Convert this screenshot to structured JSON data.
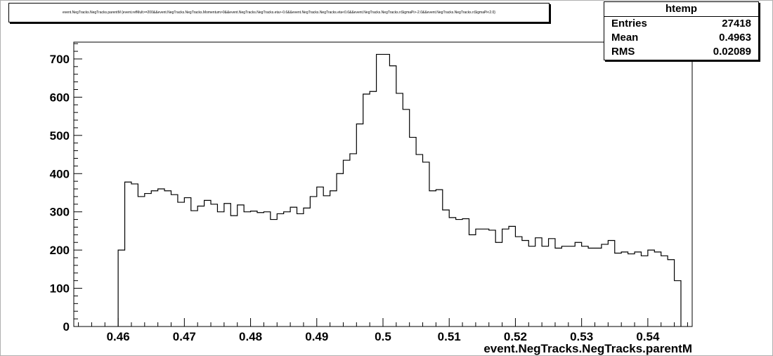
{
  "title": "event.NegTracks.NegTracks.parentM {event.refMult>=200&&event.NegTracks.NegTracks.Momentum>0&&event.NegTracks.NegTracks.eta>-0.6&&event.NegTracks.NegTracks.eta<0.6&&event.NegTracks.NegTracks.nSigmaPi>-2.0&&event.NegTracks.NegTracks.nSigmaPi<2.0}",
  "stats": {
    "name": "htemp",
    "rows": [
      {
        "label": "Entries",
        "value": "27418"
      },
      {
        "label": "Mean",
        "value": "0.4963"
      },
      {
        "label": "RMS",
        "value": "0.02089"
      }
    ]
  },
  "chart_data": {
    "type": "histogram",
    "title": "event.NegTracks.NegTracks.parentM {event.refMult>=200&&event.NegTracks.NegTracks.Momentum>0&&event.NegTracks.NegTracks.eta>-0.6&&event.NegTracks.NegTracks.eta<0.6&&event.NegTracks.NegTracks.nSigmaPi>-2.0&&event.NegTracks.NegTracks.nSigmaPi<2.0}",
    "xlabel": "event.NegTracks.NegTracks.parentM",
    "ylabel": "",
    "xlim": [
      0.4533,
      0.5467
    ],
    "ylim": [
      0,
      744
    ],
    "xticks": [
      0.46,
      0.47,
      0.48,
      0.49,
      0.5,
      0.51,
      0.52,
      0.53,
      0.54
    ],
    "xtick_labels": [
      "0.46",
      "0.47",
      "0.48",
      "0.49",
      "0.5",
      "0.51",
      "0.52",
      "0.53",
      "0.54"
    ],
    "yticks": [
      0,
      100,
      200,
      300,
      400,
      500,
      600,
      700
    ],
    "ytick_labels": [
      "0",
      "100",
      "200",
      "300",
      "400",
      "500",
      "600",
      "700"
    ],
    "bin_start": 0.46,
    "bin_width": 0.001,
    "values": [
      200,
      378,
      373,
      340,
      348,
      355,
      360,
      355,
      345,
      325,
      337,
      303,
      315,
      330,
      320,
      300,
      322,
      290,
      318,
      300,
      302,
      298,
      300,
      280,
      295,
      300,
      312,
      295,
      310,
      340,
      365,
      342,
      355,
      400,
      435,
      452,
      530,
      608,
      615,
      712,
      712,
      682,
      610,
      568,
      495,
      450,
      430,
      355,
      358,
      305,
      285,
      280,
      282,
      240,
      255,
      255,
      252,
      220,
      255,
      262,
      235,
      225,
      210,
      232,
      210,
      230,
      205,
      210,
      210,
      220,
      210,
      205,
      205,
      215,
      225,
      192,
      195,
      190,
      195,
      185,
      200,
      195,
      185,
      175,
      120
    ]
  }
}
